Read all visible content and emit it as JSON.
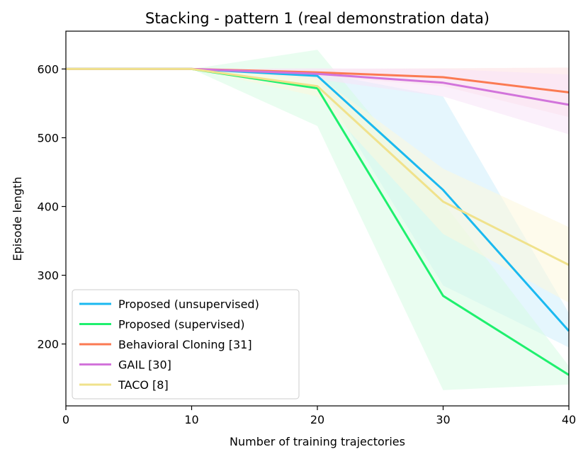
{
  "chart_data": {
    "type": "line",
    "title": "Stacking - pattern 1 (real demonstration data)",
    "xlabel": "Number of training trajectories",
    "ylabel": "Episode length",
    "xlim": [
      0,
      40
    ],
    "ylim": [
      110,
      655
    ],
    "xticks": [
      0,
      10,
      20,
      30,
      40
    ],
    "yticks": [
      200,
      300,
      400,
      500,
      600
    ],
    "grid": false,
    "legend_position": "lower-left",
    "x": [
      0,
      10,
      20,
      30,
      40
    ],
    "series": [
      {
        "name": "Proposed (unsupervised)",
        "color": "#1ab9f0",
        "band_color": "#cfeefc",
        "values": [
          600,
          600,
          590,
          424,
          219
        ],
        "band_low": [
          600,
          600,
          585,
          285,
          195
        ],
        "band_high": [
          600,
          600,
          595,
          560,
          245
        ]
      },
      {
        "name": "Proposed (supervised)",
        "color": "#1ff06e",
        "band_color": "#d7fbe4",
        "values": [
          600,
          600,
          572,
          270,
          155
        ],
        "band_low": [
          600,
          600,
          517,
          133,
          141
        ],
        "band_high": [
          600,
          600,
          628,
          406,
          168
        ]
      },
      {
        "name": "Behavioral Cloning [31]",
        "color": "#fb7a52",
        "band_color": "#fde0e2",
        "values": [
          600,
          600,
          595,
          588,
          566
        ],
        "band_low": [
          600,
          600,
          590,
          575,
          530
        ],
        "band_high": [
          600,
          600,
          600,
          601,
          602
        ]
      },
      {
        "name": "GAIL [30]",
        "color": "#d274db",
        "band_color": "#f7e3f8",
        "values": [
          600,
          600,
          593,
          580,
          548
        ],
        "band_low": [
          600,
          600,
          585,
          560,
          505
        ],
        "band_high": [
          600,
          600,
          601,
          600,
          592
        ]
      },
      {
        "name": "TACO [8]",
        "color": "#f0e28c",
        "band_color": "#fdf8dc",
        "values": [
          600,
          600,
          575,
          407,
          315
        ],
        "band_low": [
          600,
          600,
          560,
          360,
          260
        ],
        "band_high": [
          600,
          600,
          590,
          455,
          370
        ]
      }
    ]
  }
}
